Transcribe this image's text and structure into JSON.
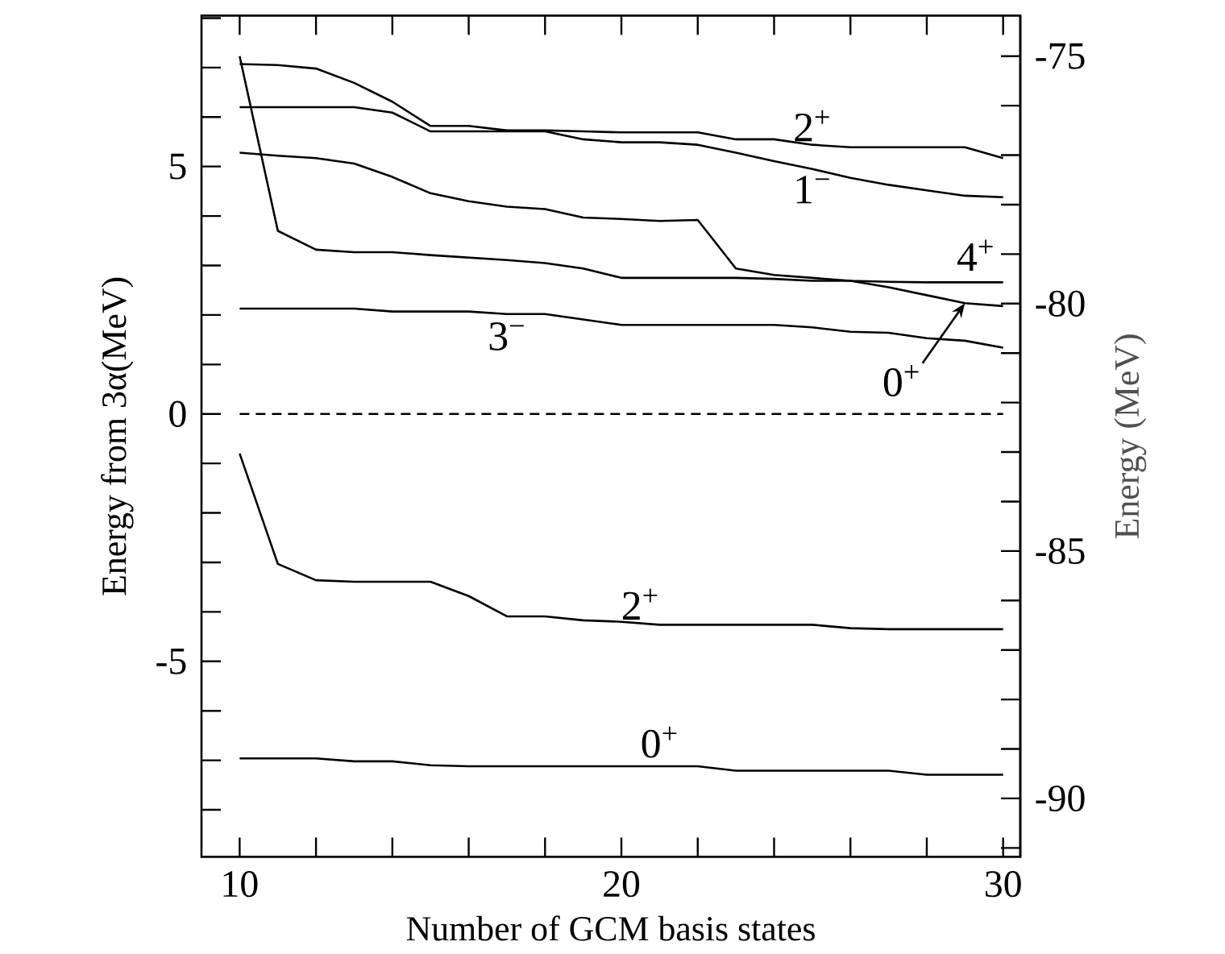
{
  "chart_data": {
    "type": "line",
    "xlabel": "Number of GCM basis states",
    "ylabel": "Energy from 3α(MeV)",
    "y2label": "Energy (MeV)",
    "x": [
      10,
      11,
      12,
      13,
      14,
      15,
      16,
      17,
      18,
      19,
      20,
      21,
      22,
      23,
      24,
      25,
      26,
      27,
      28,
      29,
      30
    ],
    "xlim": [
      9,
      30.45
    ],
    "ylim": [
      -8.95,
      8.05
    ],
    "y2lim": [
      -91.18,
      -74.18
    ],
    "xticks": [
      10,
      {
        "value": 12,
        "label": null
      },
      {
        "value": 14,
        "label": null
      },
      {
        "value": 16,
        "label": null
      },
      {
        "value": 18,
        "label": null
      },
      20,
      {
        "value": 22,
        "label": null
      },
      {
        "value": 24,
        "label": null
      },
      {
        "value": 26,
        "label": null
      },
      {
        "value": 28,
        "label": null
      },
      30
    ],
    "yticks": [
      {
        "value": -8,
        "label": null
      },
      {
        "value": -7,
        "label": null
      },
      {
        "value": -6,
        "label": null
      },
      -5,
      {
        "value": -4,
        "label": null
      },
      {
        "value": -3,
        "label": null
      },
      {
        "value": -2,
        "label": null
      },
      {
        "value": -1,
        "label": null
      },
      0,
      {
        "value": 1,
        "label": null
      },
      {
        "value": 2,
        "label": null
      },
      {
        "value": 3,
        "label": null
      },
      {
        "value": 4,
        "label": null
      },
      5,
      {
        "value": 6,
        "label": null
      },
      {
        "value": 7,
        "label": null
      },
      {
        "value": 8,
        "label": null
      }
    ],
    "y2ticks": [
      {
        "value": -91,
        "label": null
      },
      -90,
      {
        "value": -89,
        "label": null
      },
      {
        "value": -88,
        "label": null
      },
      {
        "value": -87,
        "label": null
      },
      {
        "value": -86,
        "label": null
      },
      -85,
      {
        "value": -84,
        "label": null
      },
      {
        "value": -83,
        "label": null
      },
      {
        "value": -82,
        "label": null
      },
      {
        "value": -81,
        "label": null
      },
      -80,
      {
        "value": -79,
        "label": null
      },
      {
        "value": -78,
        "label": null
      },
      {
        "value": -77,
        "label": null
      },
      {
        "value": -76,
        "label": null
      },
      -75
    ],
    "marker": "none",
    "line_style": "solid",
    "series": [
      {
        "name": "2$^{+}$",
        "color": "#000000",
        "values": [
          7.07,
          7.05,
          6.98,
          6.69,
          6.31,
          5.82,
          5.82,
          5.73,
          5.73,
          5.71,
          5.69,
          5.69,
          5.69,
          5.55,
          5.55,
          5.44,
          5.39,
          5.39,
          5.39,
          5.39,
          5.17
        ]
      },
      {
        "name": "1$^{−}$",
        "color": "#000000",
        "values": [
          6.2,
          6.2,
          6.2,
          6.2,
          6.09,
          5.71,
          5.71,
          5.71,
          5.71,
          5.55,
          5.49,
          5.49,
          5.44,
          5.28,
          5.11,
          4.95,
          4.77,
          4.63,
          4.52,
          4.41,
          4.38
        ]
      },
      {
        "name": "4$^{+}$",
        "color": "#000000",
        "values": [
          5.28,
          5.22,
          5.17,
          5.06,
          4.79,
          4.46,
          4.3,
          4.19,
          4.14,
          3.97,
          3.94,
          3.9,
          3.92,
          2.94,
          2.81,
          2.75,
          2.69,
          2.67,
          2.66,
          2.66,
          2.66
        ]
      },
      {
        "name": "0$^{+}$",
        "color": "#000000",
        "values": [
          7.23,
          3.7,
          3.32,
          3.27,
          3.27,
          3.21,
          3.16,
          3.11,
          3.05,
          2.94,
          2.75,
          2.75,
          2.75,
          2.75,
          2.73,
          2.69,
          2.69,
          2.56,
          2.4,
          2.24,
          2.18
        ]
      },
      {
        "name": "3$^{−}$",
        "color": "#000000",
        "values": [
          2.13,
          2.13,
          2.13,
          2.13,
          2.07,
          2.07,
          2.07,
          2.02,
          2.02,
          1.91,
          1.8,
          1.8,
          1.8,
          1.8,
          1.8,
          1.75,
          1.66,
          1.64,
          1.53,
          1.48,
          1.34
        ]
      },
      {
        "name": "2$^{+}$",
        "color": "#000000",
        "values": [
          -0.8,
          -3.03,
          -3.36,
          -3.39,
          -3.39,
          -3.39,
          -3.68,
          -4.09,
          -4.09,
          -4.17,
          -4.2,
          -4.26,
          -4.26,
          -4.26,
          -4.26,
          -4.26,
          -4.33,
          -4.35,
          -4.35,
          -4.35,
          -4.35
        ]
      },
      {
        "name": "0$^{+}$",
        "color": "#000000",
        "values": [
          -6.96,
          -6.96,
          -6.96,
          -7.02,
          -7.02,
          -7.1,
          -7.12,
          -7.12,
          -7.12,
          -7.12,
          -7.12,
          -7.12,
          -7.12,
          -7.21,
          -7.21,
          -7.21,
          -7.21,
          -7.21,
          -7.29,
          -7.29,
          -7.29
        ]
      }
    ],
    "ref_lines": [
      {
        "axis": "y",
        "value": 0,
        "line_style": "dashed"
      }
    ]
  }
}
